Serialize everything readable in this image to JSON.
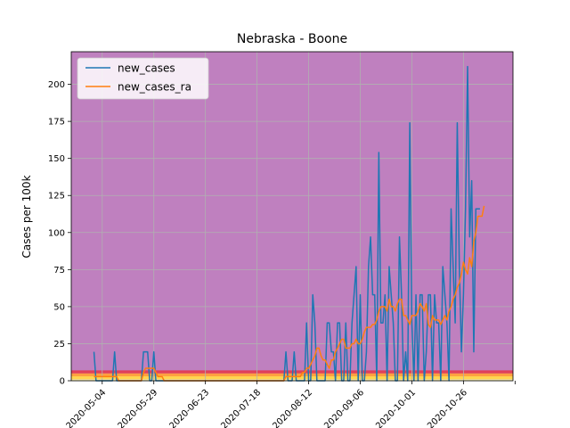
{
  "chart_data": {
    "type": "line",
    "title": "Nebraska - Boone",
    "xlabel": "",
    "ylabel": "Cases per 100k",
    "x_start": "2020-04-30",
    "x_end": "2020-11-14",
    "xlim": [
      "2020-04-19",
      "2020-11-19"
    ],
    "ylim": [
      0,
      222
    ],
    "xticks": [
      "2020-05-04",
      "2020-05-29",
      "2020-06-23",
      "2020-07-18",
      "2020-08-12",
      "2020-09-06",
      "2020-10-01",
      "2020-10-26"
    ],
    "yticks": [
      0,
      25,
      50,
      75,
      100,
      125,
      150,
      175,
      200
    ],
    "grid": true,
    "legend_position": "top-left",
    "background": "#bf80bf",
    "bands": [
      {
        "from": 0,
        "to": 1,
        "color": "#fff7b0"
      },
      {
        "from": 1,
        "to": 3,
        "color": "#ffd54f"
      },
      {
        "from": 3,
        "to": 5,
        "color": "#ffa040"
      },
      {
        "from": 5,
        "to": 7,
        "color": "#e0405a"
      }
    ],
    "series": [
      {
        "name": "new_cases",
        "color": "#1f77b4",
        "values": [
          19.5,
          0,
          0,
          0,
          0,
          0,
          0,
          0,
          0,
          0,
          19.5,
          0,
          0,
          0,
          0,
          0,
          0,
          0,
          0,
          0,
          0,
          0,
          0,
          0,
          19.5,
          19.5,
          19.5,
          0,
          0,
          19.5,
          0,
          0,
          0,
          0,
          0,
          0,
          0,
          0,
          0,
          0,
          0,
          0,
          0,
          0,
          0,
          0,
          0,
          0,
          0,
          0,
          0,
          0,
          0,
          0,
          0,
          0,
          0,
          0,
          0,
          0,
          0,
          0,
          0,
          0,
          0,
          0,
          0,
          0,
          0,
          0,
          0,
          0,
          0,
          0,
          0,
          0,
          0,
          0,
          0,
          0,
          0,
          0,
          0,
          0,
          0,
          0,
          0,
          0,
          0,
          0,
          0,
          0,
          0,
          19.5,
          0,
          0,
          0,
          19.5,
          0,
          0,
          0,
          0,
          0,
          39,
          0,
          0,
          58,
          39,
          0,
          0,
          0,
          0,
          0,
          39,
          39,
          19.5,
          19.5,
          0,
          39,
          39,
          0,
          0,
          39,
          0,
          0,
          39,
          58,
          77,
          0,
          58,
          0,
          0,
          19.5,
          77,
          97,
          58,
          58,
          0,
          154,
          39,
          39,
          58,
          0,
          77,
          58,
          39,
          0,
          0,
          97,
          58,
          0,
          19.5,
          0,
          174,
          39,
          0,
          58,
          0,
          58,
          58,
          0,
          19.5,
          58,
          58,
          0,
          58,
          39,
          39,
          0,
          77,
          58,
          39,
          0,
          116,
          77,
          39,
          174,
          77,
          19.5,
          58,
          116,
          212,
          97,
          135,
          19.5,
          116,
          116,
          116
        ]
      },
      {
        "name": "new_cases_ra",
        "color": "#ff7f0e",
        "values": [
          2.8,
          2.8,
          2.8,
          2.8,
          2.8,
          2.8,
          2.8,
          2.8,
          2.8,
          2.8,
          2.8,
          2.8,
          0,
          0,
          0,
          0,
          0,
          0,
          0,
          0,
          0,
          0,
          0,
          0,
          5.6,
          8.4,
          8.4,
          8.4,
          8.4,
          8.4,
          5.6,
          2.8,
          2.8,
          2.8,
          0,
          0,
          0,
          0,
          0,
          0,
          0,
          0,
          0,
          0,
          0,
          0,
          0,
          0,
          0,
          0,
          0,
          0,
          0,
          0,
          0,
          0,
          0,
          0,
          0,
          0,
          0,
          0,
          0,
          0,
          0,
          0,
          0,
          0,
          0,
          0,
          0,
          0,
          0,
          0,
          0,
          0,
          0,
          0,
          0,
          0,
          0,
          0,
          0,
          0,
          0,
          0,
          0,
          0,
          0,
          0,
          0,
          0,
          0,
          2.8,
          2.8,
          2.8,
          2.8,
          2.8,
          2.8,
          2.8,
          2.8,
          5.6,
          5.6,
          8.4,
          8.4,
          11,
          14,
          16.8,
          22,
          22,
          16.8,
          14,
          14,
          11,
          8.4,
          14,
          14,
          19.5,
          22,
          25,
          28,
          28,
          22,
          22,
          22,
          25,
          25,
          28,
          25,
          25,
          28,
          33,
          36,
          36,
          36,
          38,
          38,
          41,
          47,
          50,
          50,
          50,
          47,
          55,
          50,
          50,
          47,
          52,
          55,
          55,
          44,
          44,
          41,
          38,
          44,
          44,
          44,
          47,
          52,
          50,
          47,
          52,
          38,
          36,
          44,
          41,
          41,
          41,
          38,
          41,
          44,
          41,
          47,
          50,
          55,
          58,
          63,
          66,
          72,
          80,
          75,
          72,
          83,
          77,
          94,
          100,
          111,
          111,
          111,
          118
        ]
      }
    ]
  }
}
